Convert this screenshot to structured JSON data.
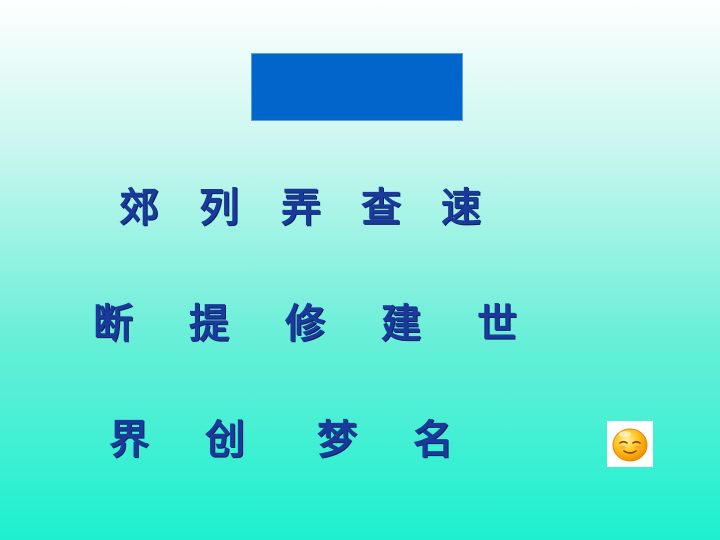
{
  "rows": [
    [
      "郊",
      "列",
      "弄",
      "查",
      "速"
    ],
    [
      "断",
      "提",
      "修",
      "建",
      "世"
    ],
    [
      "界",
      "创",
      "梦",
      "名"
    ]
  ],
  "colors": {
    "title_box": "#0066cc",
    "text": "#1a3a99",
    "background_top": "#ffffff",
    "background_bottom": "#1cf0cf"
  },
  "icons": {
    "emoji": "smiling-face-icon"
  }
}
